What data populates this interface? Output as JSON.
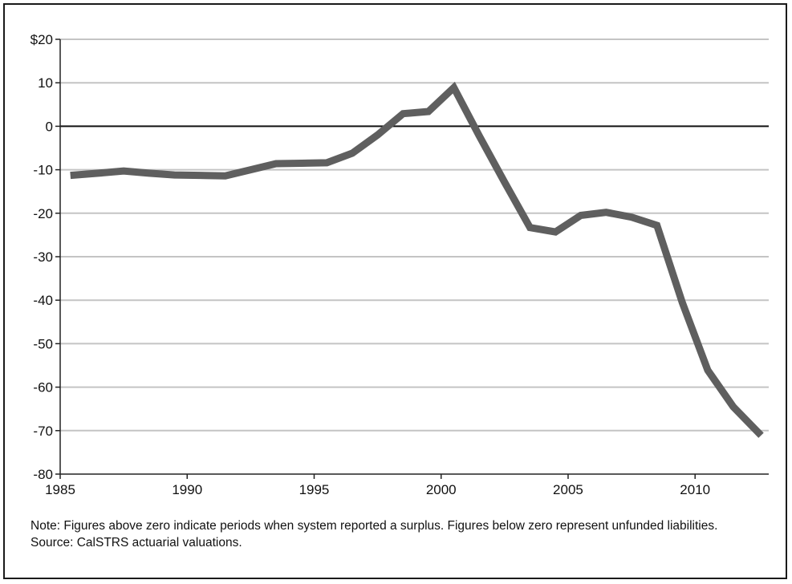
{
  "chart_data": {
    "type": "line",
    "title": "",
    "xlabel": "",
    "ylabel": "",
    "xlim": [
      1985,
      2012.9
    ],
    "ylim": [
      -80,
      20
    ],
    "x_ticks": [
      1985,
      1990,
      1995,
      2000,
      2005,
      2010
    ],
    "y_ticks": [
      20,
      10,
      0,
      -10,
      -20,
      -30,
      -40,
      -50,
      -60,
      -70,
      -80
    ],
    "y_tick_labels": [
      "$20",
      "10",
      "0",
      "-10",
      "-20",
      "-30",
      "-40",
      "-50",
      "-60",
      "-70",
      "-80"
    ],
    "grid": "horizontal",
    "zero_line": true,
    "legend": "none",
    "series": [
      {
        "color": "#5f5f5f",
        "x": [
          1985.4,
          1986.5,
          1987.5,
          1988.5,
          1989.5,
          1990.5,
          1991.5,
          1992.5,
          1993.5,
          1994.5,
          1995.5,
          1996.5,
          1997.5,
          1998.5,
          1999.5,
          2000.5,
          2001.5,
          2002.5,
          2003.5,
          2004.5,
          2005.5,
          2006.5,
          2007.5,
          2008.5,
          2009.5,
          2010.5,
          2011.5,
          2012.6
        ],
        "values": [
          -11.3,
          -10.8,
          -10.3,
          -10.8,
          -11.2,
          -11.3,
          -11.4,
          -10.0,
          -8.6,
          -8.5,
          -8.4,
          -6.2,
          -2.0,
          2.9,
          3.4,
          8.9,
          -2.2,
          -12.9,
          -23.3,
          -24.3,
          -20.5,
          -19.8,
          -20.9,
          -22.8,
          -40.6,
          -56.1,
          -64.5,
          -71.1
        ]
      }
    ]
  },
  "notes": {
    "note": "Note: Figures above zero indicate periods when system reported a surplus. Figures below zero represent unfunded liabilities.",
    "source": "Source: CalSTRS actuarial valuations."
  }
}
